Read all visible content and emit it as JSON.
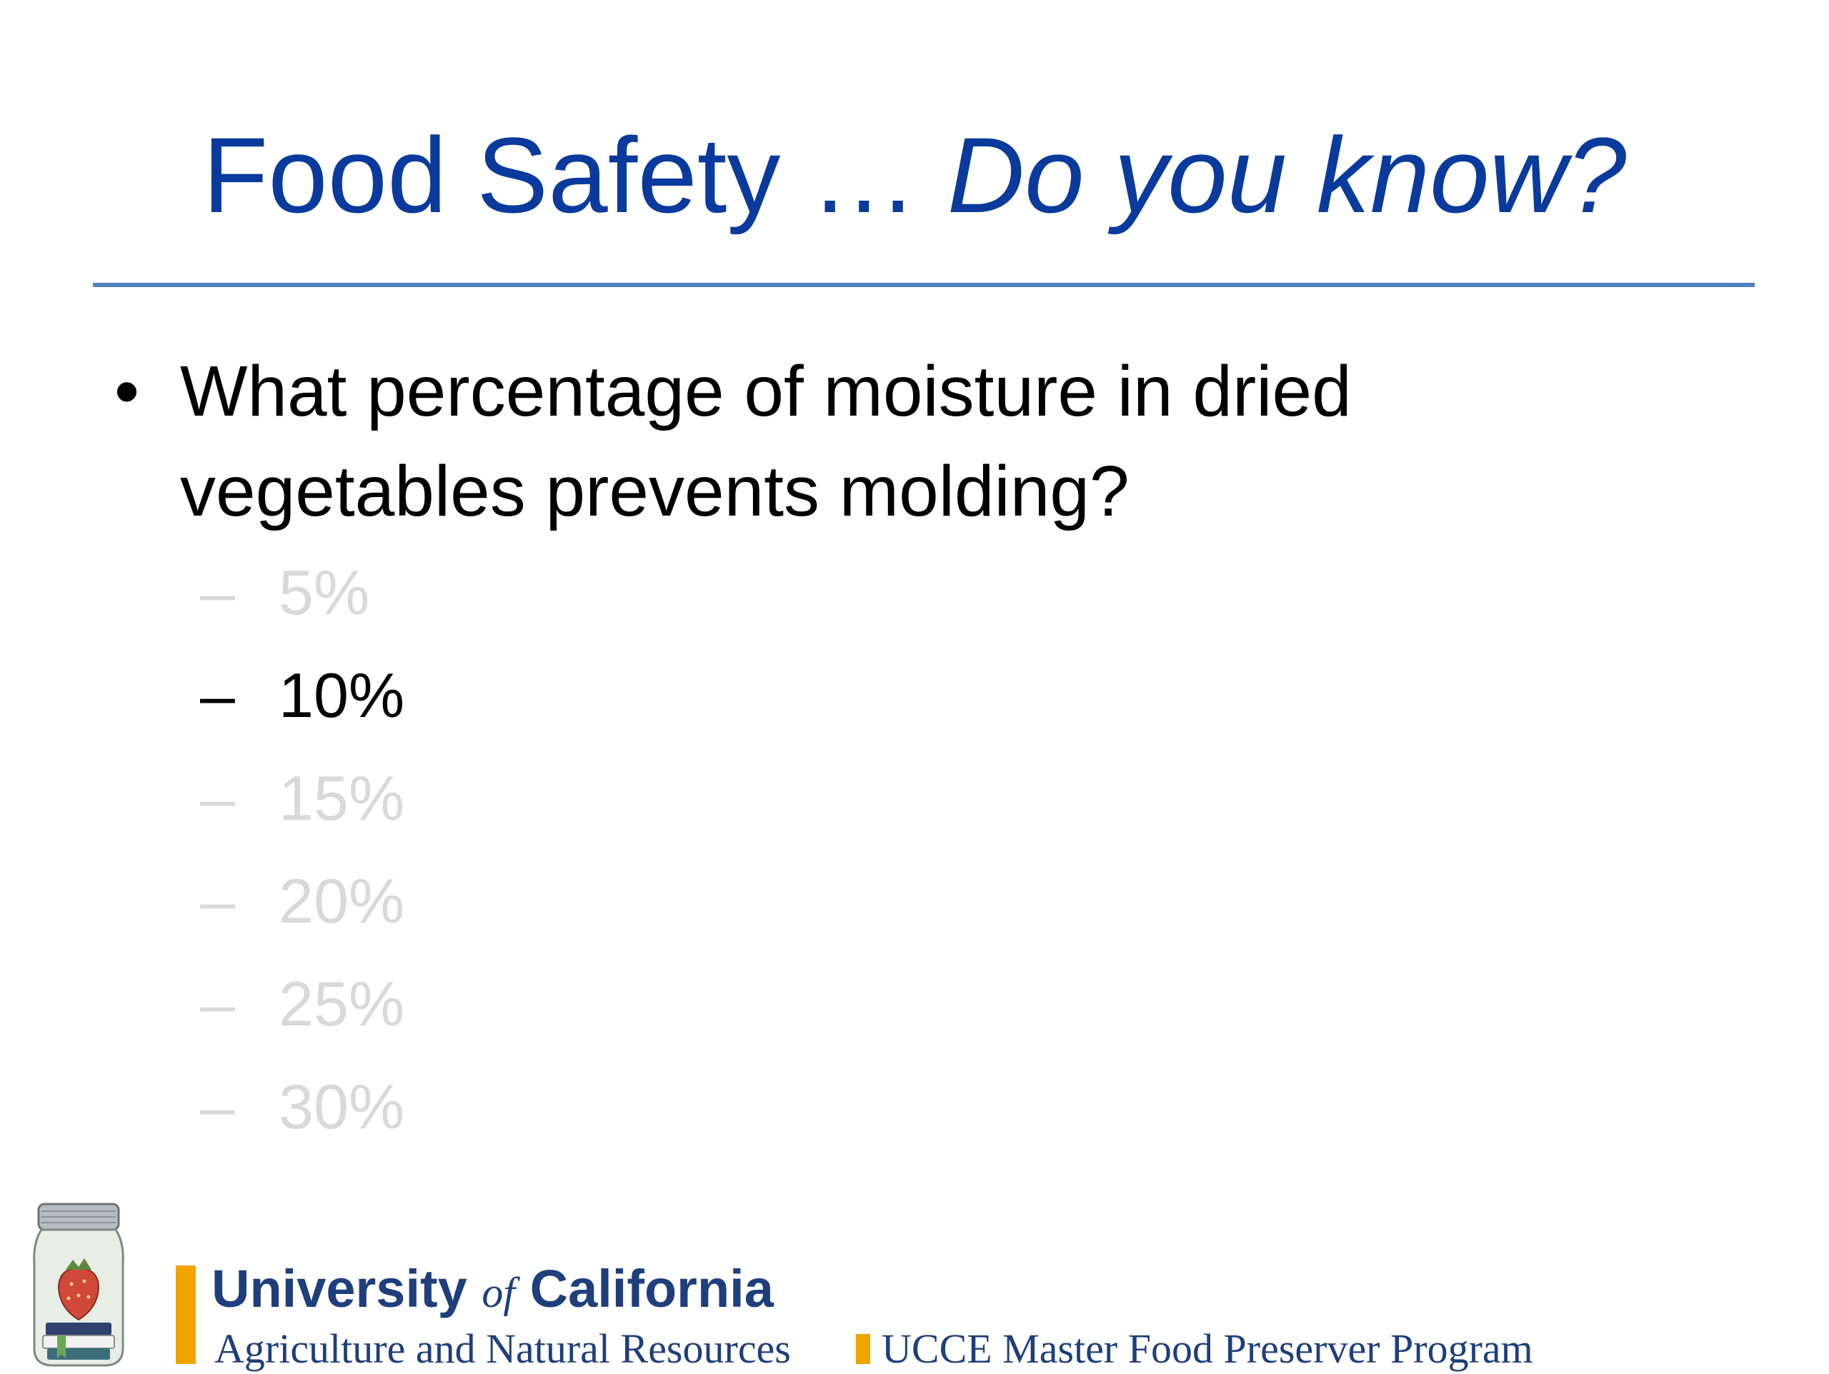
{
  "slide": {
    "title_main": "Food Safety … ",
    "title_italic": "Do you know?",
    "question": "What percentage of moisture in dried vegetables prevents molding?",
    "bullet": "•",
    "options": [
      {
        "dash": "–",
        "label": "5%",
        "state": "dimmed"
      },
      {
        "dash": "–",
        "label": "10%",
        "state": "highlighted"
      },
      {
        "dash": "–",
        "label": "15%",
        "state": "dimmed"
      },
      {
        "dash": "–",
        "label": "20%",
        "state": "dimmed"
      },
      {
        "dash": "–",
        "label": "25%",
        "state": "dimmed"
      },
      {
        "dash": "–",
        "label": "30%",
        "state": "dimmed"
      }
    ]
  },
  "footer": {
    "uc_part1": "University ",
    "uc_of": "of",
    "uc_part2": " California",
    "anr": "Agriculture and Natural Resources",
    "program": "UCCE Master Food Preserver Program"
  },
  "colors": {
    "title": "#0a3a9c",
    "rule": "#4f81bd",
    "highlighted": "#000000",
    "dimmed": "#d9d9d9",
    "footer_text": "#1e3f7c",
    "footer_bar": "#f0a400"
  }
}
